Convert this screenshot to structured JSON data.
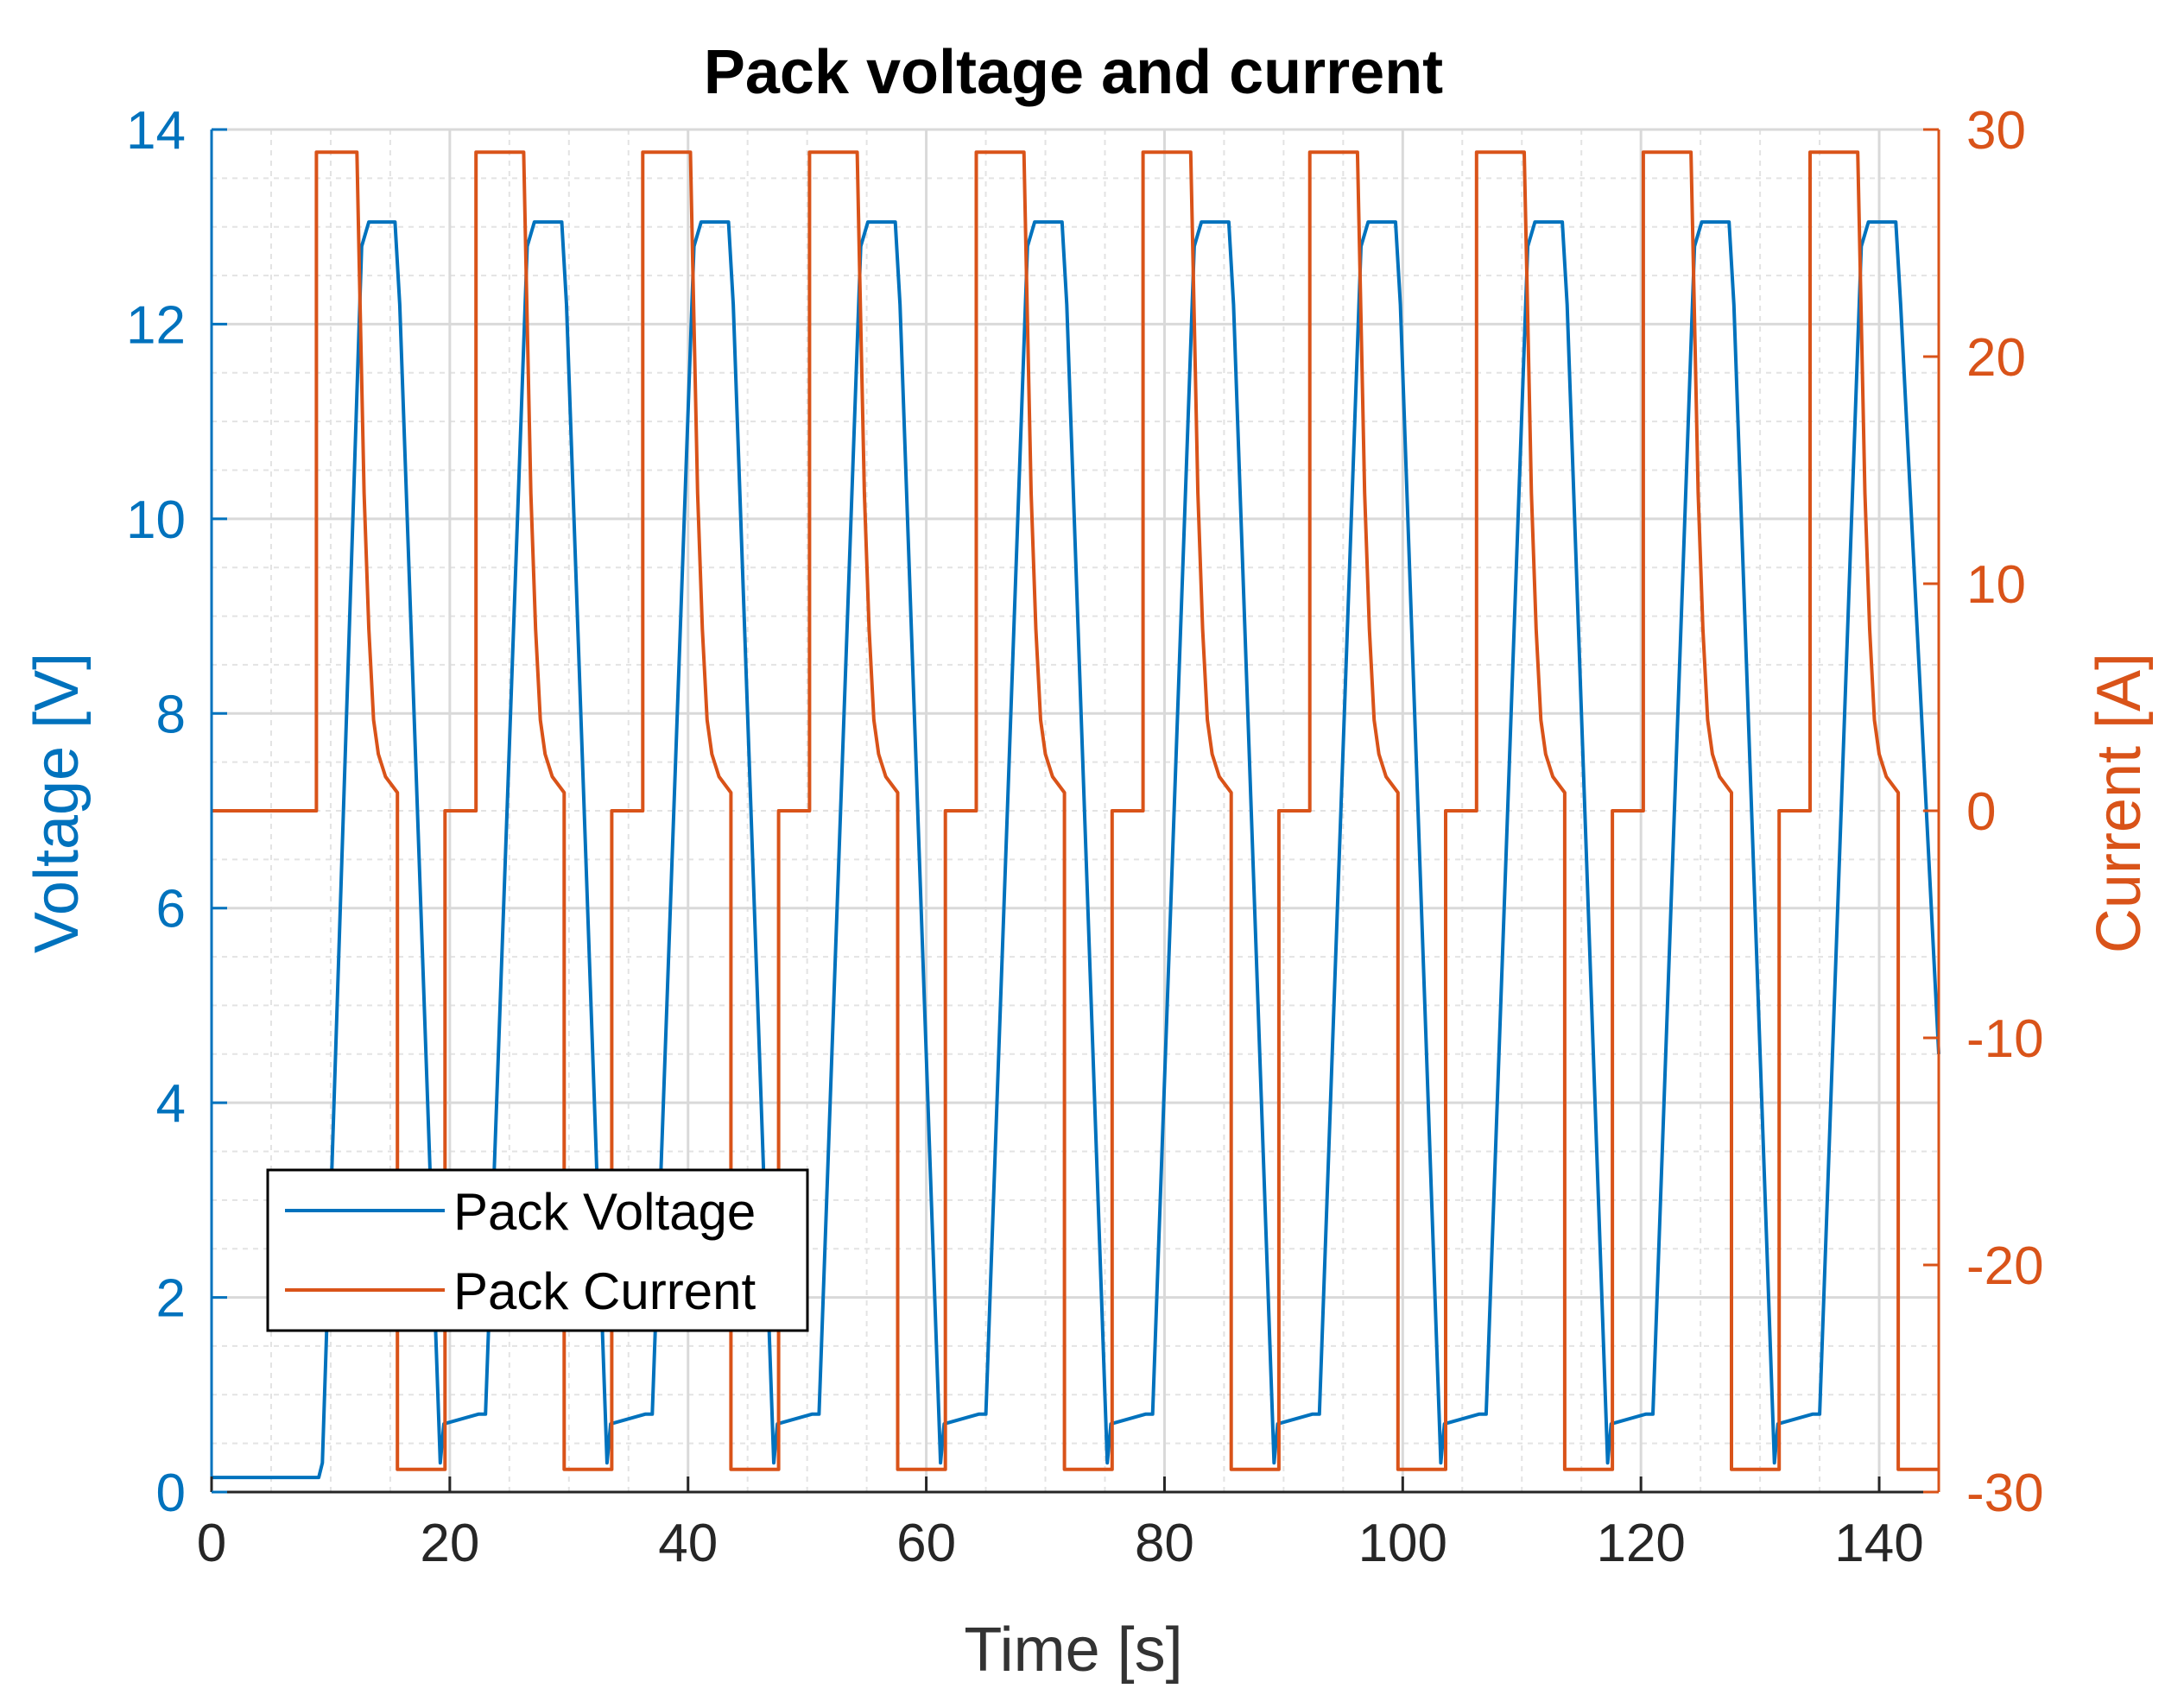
{
  "chart_data": {
    "type": "line",
    "title": "Pack voltage and current",
    "xlabel": "Time [s]",
    "ylabel_left": "Voltage [V]",
    "ylabel_right": "Current [A]",
    "xlim": [
      0,
      145
    ],
    "ylim_left": [
      0,
      14
    ],
    "ylim_right": [
      -30,
      30
    ],
    "xticks": [
      0,
      20,
      40,
      60,
      80,
      100,
      120,
      140
    ],
    "xtick_labels": [
      "0",
      "20",
      "40",
      "60",
      "80",
      "100",
      "120",
      "140"
    ],
    "yticks_left": [
      0,
      2,
      4,
      6,
      8,
      10,
      12,
      14
    ],
    "ytick_labels_left": [
      "0",
      "2",
      "4",
      "6",
      "8",
      "10",
      "12",
      "14"
    ],
    "yticks_right": [
      -30,
      -20,
      -10,
      0,
      10,
      20,
      30
    ],
    "ytick_labels_right": [
      "-30",
      "-20",
      "-10",
      "0",
      "10",
      "20",
      "30"
    ],
    "grid": true,
    "minor_grid": true,
    "legend_position": "lower-left",
    "colors": {
      "voltage": "#0072BD",
      "current": "#D95319",
      "axis_left": "#0072BD",
      "axis_right": "#D95319",
      "grid": "#d9d9d9"
    },
    "series": [
      {
        "name": "Pack Voltage",
        "axis": "left",
        "x": [
          0,
          9.0,
          9.3,
          12.6,
          13.2,
          15.4,
          15.8,
          19.2,
          19.5,
          22.4,
          23.0,
          26.5,
          27.1,
          29.4,
          29.8,
          33.2,
          33.5,
          36.4,
          37.0,
          40.5,
          41.1,
          43.4,
          43.8,
          47.2,
          47.5,
          50.4,
          51.0,
          54.5,
          55.1,
          57.4,
          57.8,
          61.2,
          61.5,
          64.4,
          65.0,
          68.5,
          69.1,
          71.4,
          71.8,
          75.2,
          75.5,
          78.4,
          79.0,
          82.5,
          83.1,
          85.4,
          85.8,
          89.2,
          89.5,
          92.4,
          93.0,
          96.5,
          97.1,
          99.4,
          99.8,
          103.2,
          103.5,
          106.4,
          107.0,
          110.5,
          111.1,
          113.4,
          113.8,
          117.2,
          117.5,
          120.4,
          121.0,
          124.5,
          125.1,
          127.4,
          127.8,
          131.2,
          131.5,
          134.4,
          135.0,
          138.5,
          139.1,
          141.4,
          141.8,
          145.0
        ],
        "y": [
          0.15,
          0.15,
          0.3,
          12.8,
          13.05,
          13.05,
          12.2,
          0.3,
          0.7,
          0.8,
          0.8,
          12.8,
          13.05,
          13.05,
          12.2,
          0.3,
          0.7,
          0.8,
          0.8,
          12.8,
          13.05,
          13.05,
          12.2,
          0.3,
          0.7,
          0.8,
          0.8,
          12.8,
          13.05,
          13.05,
          12.2,
          0.3,
          0.7,
          0.8,
          0.8,
          12.8,
          13.05,
          13.05,
          12.2,
          0.3,
          0.7,
          0.8,
          0.8,
          12.8,
          13.05,
          13.05,
          12.2,
          0.3,
          0.7,
          0.8,
          0.8,
          12.8,
          13.05,
          13.05,
          12.2,
          0.3,
          0.7,
          0.8,
          0.8,
          12.8,
          13.05,
          13.05,
          12.2,
          0.3,
          0.7,
          0.8,
          0.8,
          12.8,
          13.05,
          13.05,
          12.2,
          0.3,
          0.7,
          0.8,
          0.8,
          12.8,
          13.05,
          13.05,
          12.2,
          4.5
        ]
      },
      {
        "name": "Pack Current",
        "axis": "right",
        "x": [
          0,
          8.8,
          8.8,
          12.2,
          12.4,
          12.8,
          13.2,
          13.6,
          14.0,
          14.6,
          15.6,
          15.6,
          19.6,
          19.6,
          22.2,
          22.2,
          22.8,
          22.8,
          26.2,
          26.4,
          26.8,
          27.2,
          27.6,
          28.0,
          28.6,
          29.6,
          29.6,
          33.6,
          33.6,
          36.2,
          36.2,
          36.8,
          36.8,
          40.2,
          40.4,
          40.8,
          41.2,
          41.6,
          42.0,
          42.6,
          43.6,
          43.6,
          47.6,
          47.6,
          50.2,
          50.2,
          50.8,
          50.8,
          54.2,
          54.4,
          54.8,
          55.2,
          55.6,
          56.0,
          56.6,
          57.6,
          57.6,
          61.6,
          61.6,
          64.2,
          64.2,
          64.8,
          64.8,
          68.2,
          68.4,
          68.8,
          69.2,
          69.6,
          70.0,
          70.6,
          71.6,
          71.6,
          75.6,
          75.6,
          78.2,
          78.2,
          78.8,
          78.8,
          82.2,
          82.4,
          82.8,
          83.2,
          83.6,
          84.0,
          84.6,
          85.6,
          85.6,
          89.6,
          89.6,
          92.2,
          92.2,
          92.8,
          92.8,
          96.2,
          96.4,
          96.8,
          97.2,
          97.6,
          98.0,
          98.6,
          99.6,
          99.6,
          103.6,
          103.6,
          106.2,
          106.2,
          106.8,
          106.8,
          110.2,
          110.4,
          110.8,
          111.2,
          111.6,
          112.0,
          112.6,
          113.6,
          113.6,
          117.6,
          117.6,
          120.2,
          120.2,
          120.8,
          120.8,
          124.2,
          124.4,
          124.8,
          125.2,
          125.6,
          126.0,
          126.6,
          127.6,
          127.6,
          131.6,
          131.6,
          134.2,
          134.2,
          134.8,
          134.8,
          138.2,
          138.4,
          138.8,
          139.2,
          139.6,
          140.0,
          140.6,
          141.6,
          141.6,
          145.0
        ],
        "y": [
          0,
          0,
          29,
          29,
          24,
          14,
          8,
          4,
          2.5,
          1.5,
          0.8,
          -29,
          -29,
          0,
          0,
          29,
          29,
          29,
          29,
          24,
          14,
          8,
          4,
          2.5,
          1.5,
          0.8,
          -29,
          -29,
          0,
          0,
          29,
          29,
          29,
          29,
          24,
          14,
          8,
          4,
          2.5,
          1.5,
          0.8,
          -29,
          -29,
          0,
          0,
          29,
          29,
          29,
          29,
          24,
          14,
          8,
          4,
          2.5,
          1.5,
          0.8,
          -29,
          -29,
          0,
          0,
          29,
          29,
          29,
          29,
          24,
          14,
          8,
          4,
          2.5,
          1.5,
          0.8,
          -29,
          -29,
          0,
          0,
          29,
          29,
          29,
          29,
          24,
          14,
          8,
          4,
          2.5,
          1.5,
          0.8,
          -29,
          -29,
          0,
          0,
          29,
          29,
          29,
          29,
          24,
          14,
          8,
          4,
          2.5,
          1.5,
          0.8,
          -29,
          -29,
          0,
          0,
          29,
          29,
          29,
          29,
          24,
          14,
          8,
          4,
          2.5,
          1.5,
          0.8,
          -29,
          -29,
          0,
          0,
          29,
          29,
          29,
          29,
          24,
          14,
          8,
          4,
          2.5,
          1.5,
          0.8,
          -29,
          -29,
          0,
          0,
          29,
          29,
          29,
          29,
          24,
          14,
          8,
          4,
          2.5,
          1.5,
          0.8,
          -29,
          -29
        ]
      }
    ]
  }
}
